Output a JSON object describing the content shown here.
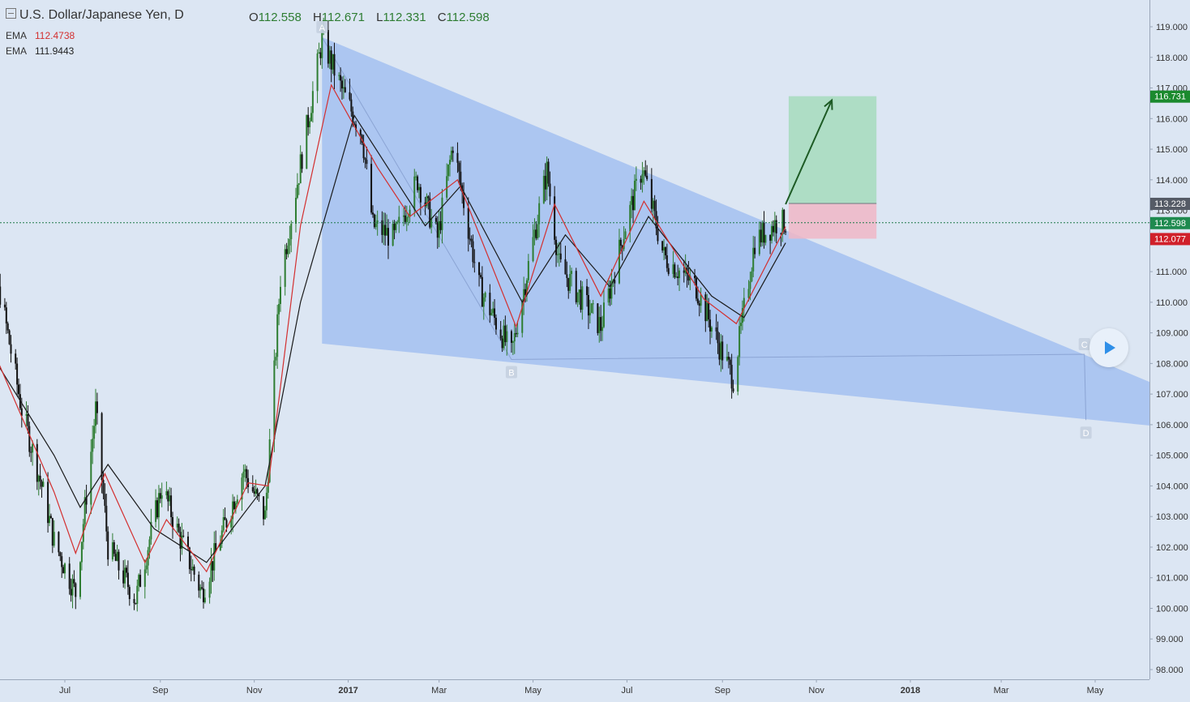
{
  "header": {
    "symbol_title": "U.S. Dollar/Japanese Yen, D",
    "open_label": "O",
    "open_value": "112.558",
    "high_label": "H",
    "high_value": "112.671",
    "low_label": "L",
    "low_value": "112.331",
    "close_label": "C",
    "close_value": "112.598"
  },
  "indicators": [
    {
      "name": "EMA",
      "value": "112.4738",
      "color": "#d32f2f"
    },
    {
      "name": "EMA",
      "value": "111.9443",
      "color": "#222222"
    }
  ],
  "price_tags": {
    "target": {
      "text": "116.731",
      "color": "#1b8a2e"
    },
    "entry": {
      "text": "113.228",
      "color": "#555b66"
    },
    "last": {
      "text": "112.598",
      "color": "#1e8a4f"
    },
    "stop": {
      "text": "112.077",
      "color": "#d0202a"
    }
  },
  "pattern_points": [
    "A",
    "B",
    "C",
    "D"
  ],
  "colors": {
    "background": "#dce6f3",
    "up_candle": "#2e7d32",
    "down_candle": "#111111",
    "ema_fast": "#d32f2f",
    "ema_slow": "#1a1a1a",
    "wedge_fill": "#a3bff0",
    "profit_zone": "#a9dcc0",
    "loss_zone": "#f0b6c6",
    "projection_arrow": "#1d5a24"
  },
  "chart_data": {
    "type": "candlestick",
    "title": "U.S. Dollar/Japanese Yen, D",
    "x_tick_labels": [
      "Jul",
      "Sep",
      "Nov",
      "2017",
      "Mar",
      "May",
      "Jul",
      "Sep",
      "Nov",
      "2018",
      "Mar",
      "May"
    ],
    "y_tick_labels": [
      "98.000",
      "99.000",
      "100.000",
      "101.000",
      "102.000",
      "103.000",
      "104.000",
      "105.000",
      "106.000",
      "107.000",
      "108.000",
      "109.000",
      "110.000",
      "111.000",
      "112.000",
      "113.000",
      "114.000",
      "115.000",
      "116.000",
      "117.000",
      "118.000",
      "119.000"
    ],
    "ylim": [
      97.8,
      119.5
    ],
    "x_range": [
      "2016-05-01",
      "2018-06-10"
    ],
    "grid": false,
    "price_path": [
      {
        "date": "2016-05-02",
        "close": 109.7
      },
      {
        "date": "2016-05-20",
        "close": 110.3
      },
      {
        "date": "2016-06-03",
        "close": 106.5
      },
      {
        "date": "2016-06-16",
        "close": 104.0
      },
      {
        "date": "2016-06-24",
        "close": 102.2
      },
      {
        "date": "2016-07-08",
        "close": 100.5
      },
      {
        "date": "2016-07-21",
        "close": 106.5
      },
      {
        "date": "2016-07-29",
        "close": 102.0
      },
      {
        "date": "2016-08-16",
        "close": 100.3
      },
      {
        "date": "2016-09-02",
        "close": 104.0
      },
      {
        "date": "2016-09-13",
        "close": 102.4
      },
      {
        "date": "2016-09-28",
        "close": 100.5
      },
      {
        "date": "2016-10-25",
        "close": 104.5
      },
      {
        "date": "2016-11-08",
        "close": 103.0
      },
      {
        "date": "2016-11-18",
        "close": 110.8
      },
      {
        "date": "2016-12-01",
        "close": 114.5
      },
      {
        "date": "2016-12-15",
        "close": 118.6
      },
      {
        "date": "2016-12-29",
        "close": 116.8
      },
      {
        "date": "2017-01-10",
        "close": 115.5
      },
      {
        "date": "2017-01-17",
        "close": 112.5
      },
      {
        "date": "2017-01-31",
        "close": 112.1
      },
      {
        "date": "2017-02-15",
        "close": 114.0
      },
      {
        "date": "2017-02-28",
        "close": 112.1
      },
      {
        "date": "2017-03-10",
        "close": 115.2
      },
      {
        "date": "2017-03-27",
        "close": 110.5
      },
      {
        "date": "2017-04-17",
        "close": 108.3
      },
      {
        "date": "2017-05-01",
        "close": 112.0
      },
      {
        "date": "2017-05-10",
        "close": 114.3
      },
      {
        "date": "2017-05-18",
        "close": 111.2
      },
      {
        "date": "2017-06-14",
        "close": 109.2
      },
      {
        "date": "2017-06-30",
        "close": 112.5
      },
      {
        "date": "2017-07-11",
        "close": 114.4
      },
      {
        "date": "2017-07-25",
        "close": 111.5
      },
      {
        "date": "2017-08-15",
        "close": 110.5
      },
      {
        "date": "2017-08-28",
        "close": 108.8
      },
      {
        "date": "2017-09-08",
        "close": 107.5
      },
      {
        "date": "2017-09-22",
        "close": 112.0
      },
      {
        "date": "2017-10-06",
        "close": 112.6
      },
      {
        "date": "2017-10-12",
        "close": 112.598
      }
    ],
    "ema_fast_path": [
      {
        "date": "2016-05-02",
        "close": 110.0
      },
      {
        "date": "2016-06-24",
        "close": 103.8
      },
      {
        "date": "2016-07-08",
        "close": 101.8
      },
      {
        "date": "2016-07-27",
        "close": 104.4
      },
      {
        "date": "2016-08-22",
        "close": 101.5
      },
      {
        "date": "2016-09-05",
        "close": 102.9
      },
      {
        "date": "2016-10-01",
        "close": 101.2
      },
      {
        "date": "2016-10-28",
        "close": 104.1
      },
      {
        "date": "2016-11-10",
        "close": 104.0
      },
      {
        "date": "2016-12-01",
        "close": 112.5
      },
      {
        "date": "2016-12-21",
        "close": 117.1
      },
      {
        "date": "2017-01-20",
        "close": 114.4
      },
      {
        "date": "2017-02-10",
        "close": 112.8
      },
      {
        "date": "2017-03-13",
        "close": 114.0
      },
      {
        "date": "2017-04-20",
        "close": 109.2
      },
      {
        "date": "2017-05-15",
        "close": 113.2
      },
      {
        "date": "2017-06-14",
        "close": 110.2
      },
      {
        "date": "2017-07-12",
        "close": 113.3
      },
      {
        "date": "2017-08-20",
        "close": 110.1
      },
      {
        "date": "2017-09-10",
        "close": 109.3
      },
      {
        "date": "2017-10-12",
        "close": 112.47
      }
    ],
    "ema_slow_path": [
      {
        "date": "2016-05-02",
        "close": 109.3
      },
      {
        "date": "2016-06-24",
        "close": 105.0
      },
      {
        "date": "2016-07-11",
        "close": 103.3
      },
      {
        "date": "2016-07-29",
        "close": 104.7
      },
      {
        "date": "2016-08-28",
        "close": 102.6
      },
      {
        "date": "2016-10-01",
        "close": 101.5
      },
      {
        "date": "2016-11-08",
        "close": 104.0
      },
      {
        "date": "2016-12-01",
        "close": 110.0
      },
      {
        "date": "2017-01-05",
        "close": 116.1
      },
      {
        "date": "2017-02-20",
        "close": 112.5
      },
      {
        "date": "2017-03-15",
        "close": 113.8
      },
      {
        "date": "2017-04-24",
        "close": 110.0
      },
      {
        "date": "2017-05-22",
        "close": 112.2
      },
      {
        "date": "2017-06-20",
        "close": 110.5
      },
      {
        "date": "2017-07-15",
        "close": 112.8
      },
      {
        "date": "2017-08-25",
        "close": 110.2
      },
      {
        "date": "2017-09-15",
        "close": 109.5
      },
      {
        "date": "2017-10-12",
        "close": 111.94
      }
    ],
    "current_price": 112.598,
    "ema_fast_value": 112.4738,
    "ema_slow_value": 111.9443,
    "wedge": {
      "A": {
        "date": "2016-12-15",
        "price": 118.66
      },
      "B": {
        "date": "2017-04-17",
        "price": 108.13
      },
      "C": {
        "date": "2018-04-24",
        "price": 108.3
      },
      "D": {
        "date": "2018-04-25",
        "price": 106.15
      },
      "upper_end": {
        "date": "2018-06-10",
        "price": 107.3
      },
      "lower_start": {
        "date": "2016-12-15",
        "price": 108.65
      },
      "lower_end": {
        "date": "2018-06-10",
        "price": 105.95
      }
    },
    "position": {
      "entry": 113.228,
      "target": 116.731,
      "stop": 112.077,
      "start_date": "2017-10-14",
      "end_date": "2017-12-10",
      "arrow_from": {
        "date": "2017-10-12",
        "price": 113.2
      },
      "arrow_to": {
        "date": "2017-11-11",
        "price": 116.6
      }
    }
  }
}
